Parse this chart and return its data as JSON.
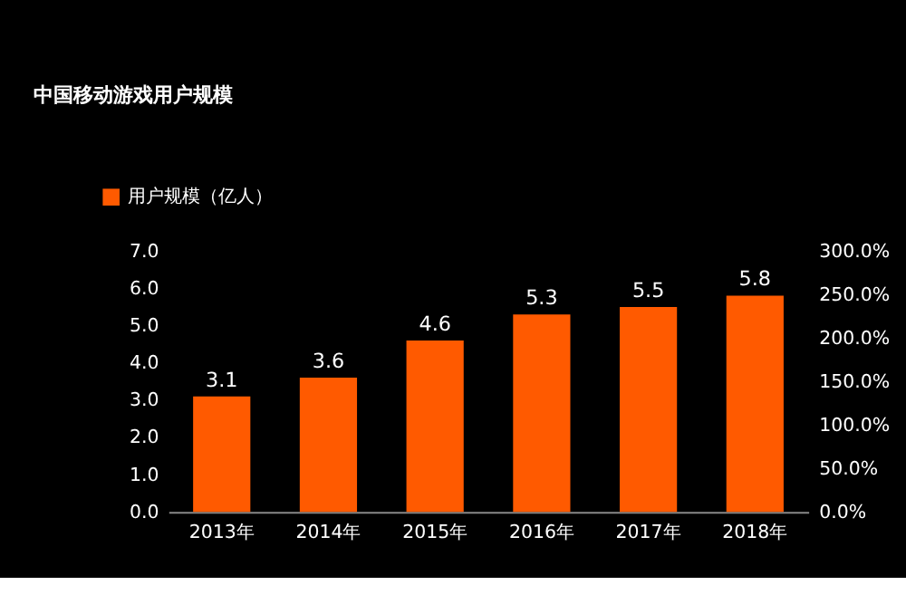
{
  "chart_data": {
    "type": "bar",
    "title": "中国移动游戏用户规模",
    "categories": [
      "2013年",
      "2014年",
      "2015年",
      "2016年",
      "2017年",
      "2018年"
    ],
    "series": [
      {
        "name": "用户规模（亿人）",
        "color": "#ff5a00",
        "values": [
          3.1,
          3.6,
          4.6,
          5.3,
          5.5,
          5.8
        ]
      }
    ],
    "ylim": [
      0,
      7
    ],
    "yticks": [
      {
        "value": 0,
        "label": "0.0"
      },
      {
        "value": 1,
        "label": "1.0"
      },
      {
        "value": 2,
        "label": "2.0"
      },
      {
        "value": 3,
        "label": "3.0"
      },
      {
        "value": 4,
        "label": "4.0"
      },
      {
        "value": 5,
        "label": "5.0"
      },
      {
        "value": 6,
        "label": "6.0"
      },
      {
        "value": 7,
        "label": "7.0"
      }
    ],
    "y2lim": [
      0,
      300
    ],
    "y2ticks": [
      {
        "value": 0,
        "label": "0.0%"
      },
      {
        "value": 50,
        "label": "50.0%"
      },
      {
        "value": 100,
        "label": "100.0%"
      },
      {
        "value": 150,
        "label": "150.0%"
      },
      {
        "value": 200,
        "label": "200.0%"
      },
      {
        "value": 250,
        "label": "250.0%"
      },
      {
        "value": 300,
        "label": "300.0%"
      }
    ],
    "data_labels": true,
    "legend": "top left",
    "grid": false
  }
}
